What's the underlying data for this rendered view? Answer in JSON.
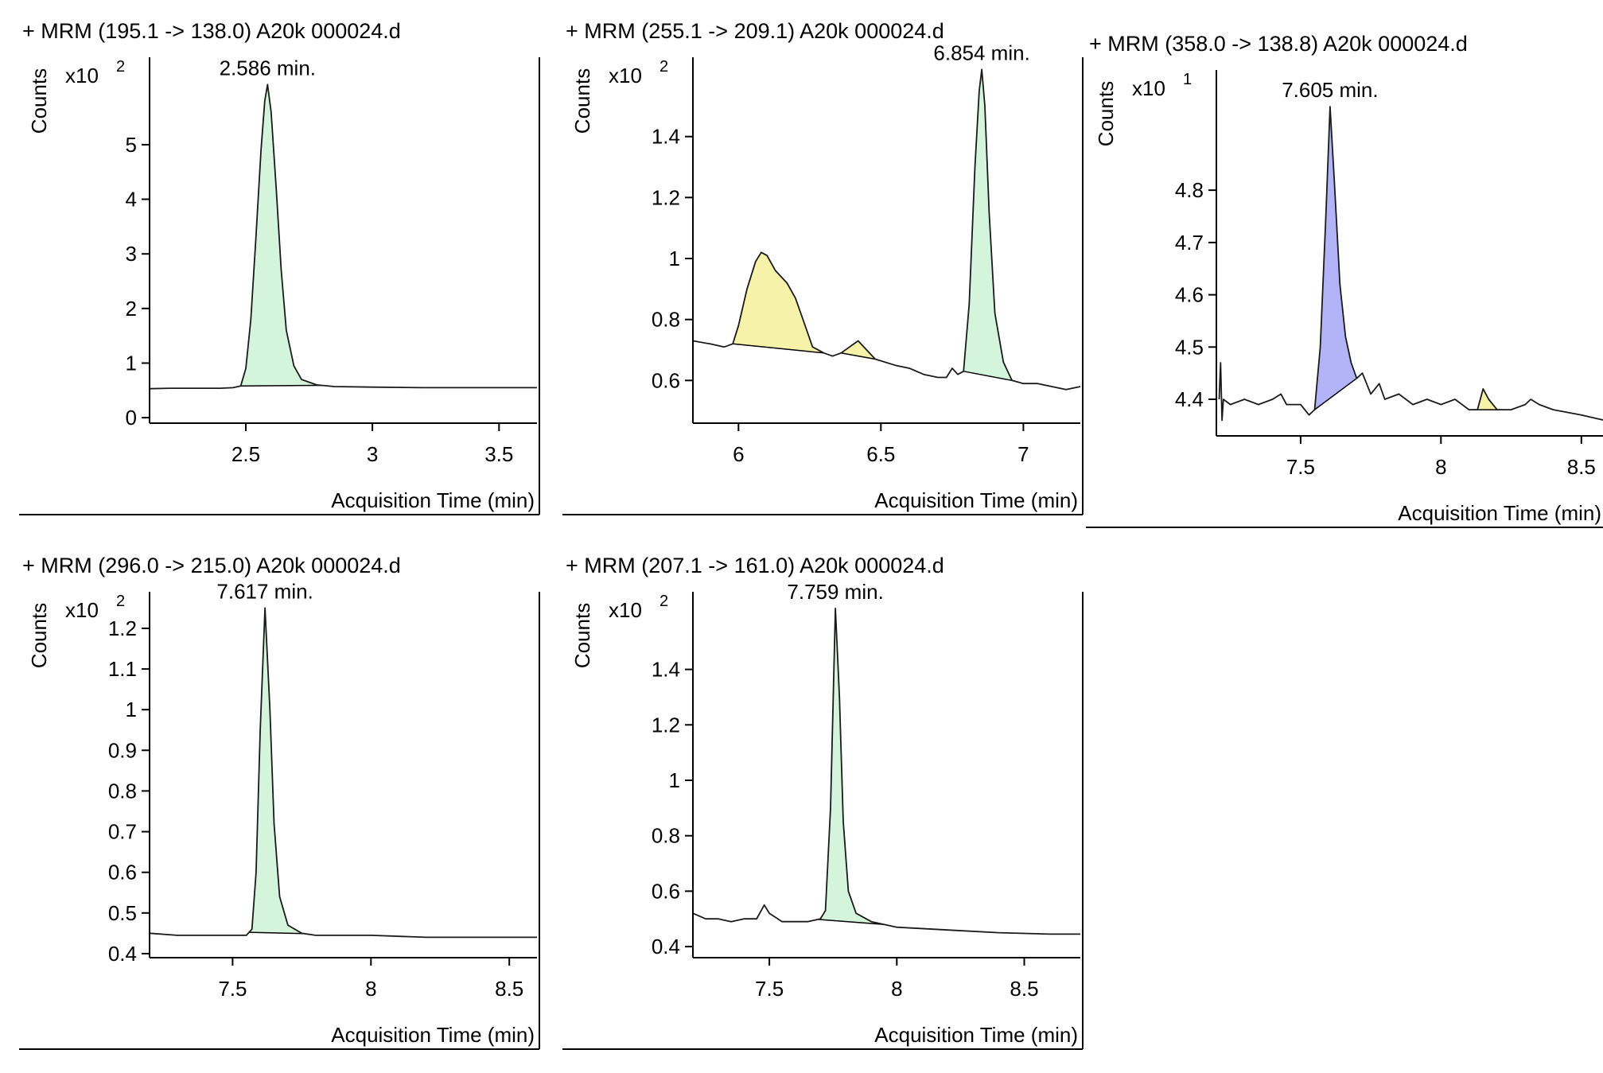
{
  "figure": {
    "background": "#ffffff"
  },
  "style": {
    "trace_color": "#1a1a1a",
    "fill_green": "#d4f5dc",
    "fill_yellow": "#f7f2a9",
    "fill_blue": "#b3b3f7"
  },
  "chart_data": [
    {
      "type": "line",
      "title": "+ MRM (195.1 -> 138.0) A20k 000024.d",
      "xlabel": "Acquisition Time (min)",
      "ylabel": "Counts",
      "y_multiplier": {
        "base": "x10",
        "exp": "2"
      },
      "xlim": [
        2.12,
        3.65
      ],
      "ylim": [
        -0.1,
        6.6
      ],
      "xticks": [
        2.5,
        3,
        3.5
      ],
      "xtick_labels": [
        "2.5",
        "3",
        "3.5"
      ],
      "yticks": [
        0,
        1,
        2,
        3,
        4,
        5
      ],
      "ytick_labels": [
        "0",
        "1",
        "2",
        "3",
        "4",
        "5"
      ],
      "trace": [
        [
          2.12,
          0.53
        ],
        [
          2.2,
          0.54
        ],
        [
          2.3,
          0.54
        ],
        [
          2.4,
          0.54
        ],
        [
          2.45,
          0.55
        ],
        [
          2.48,
          0.58
        ],
        [
          2.5,
          0.9
        ],
        [
          2.52,
          1.8
        ],
        [
          2.54,
          3.3
        ],
        [
          2.56,
          4.9
        ],
        [
          2.575,
          5.8
        ],
        [
          2.586,
          6.1
        ],
        [
          2.6,
          5.6
        ],
        [
          2.62,
          4.2
        ],
        [
          2.64,
          2.7
        ],
        [
          2.66,
          1.6
        ],
        [
          2.69,
          0.95
        ],
        [
          2.72,
          0.7
        ],
        [
          2.78,
          0.6
        ],
        [
          2.85,
          0.57
        ],
        [
          3.0,
          0.56
        ],
        [
          3.2,
          0.55
        ],
        [
          3.4,
          0.55
        ],
        [
          3.65,
          0.55
        ]
      ],
      "peaks": [
        {
          "range": [
            2.48,
            2.8
          ],
          "fill": "fill_green",
          "rt_label": "2.586 min."
        }
      ]
    },
    {
      "type": "line",
      "title": "+ MRM (255.1 -> 209.1) A20k 000024.d",
      "xlabel": "Acquisition Time (min)",
      "ylabel": "Counts",
      "y_multiplier": {
        "base": "x10",
        "exp": "2"
      },
      "xlim": [
        5.84,
        7.2
      ],
      "ylim": [
        0.46,
        1.66
      ],
      "xticks": [
        6,
        6.5,
        7
      ],
      "xtick_labels": [
        "6",
        "6.5",
        "7"
      ],
      "yticks": [
        0.6,
        0.8,
        1,
        1.2,
        1.4
      ],
      "ytick_labels": [
        "0.6",
        "0.8",
        "1",
        "1.2",
        "1.4"
      ],
      "trace": [
        [
          5.84,
          0.73
        ],
        [
          5.9,
          0.72
        ],
        [
          5.95,
          0.71
        ],
        [
          5.98,
          0.72
        ],
        [
          6.0,
          0.78
        ],
        [
          6.03,
          0.9
        ],
        [
          6.06,
          0.99
        ],
        [
          6.08,
          1.02
        ],
        [
          6.1,
          1.01
        ],
        [
          6.13,
          0.96
        ],
        [
          6.17,
          0.92
        ],
        [
          6.2,
          0.87
        ],
        [
          6.23,
          0.79
        ],
        [
          6.26,
          0.71
        ],
        [
          6.3,
          0.69
        ],
        [
          6.33,
          0.68
        ],
        [
          6.36,
          0.69
        ],
        [
          6.39,
          0.71
        ],
        [
          6.42,
          0.73
        ],
        [
          6.45,
          0.7
        ],
        [
          6.48,
          0.67
        ],
        [
          6.55,
          0.65
        ],
        [
          6.6,
          0.64
        ],
        [
          6.65,
          0.62
        ],
        [
          6.7,
          0.61
        ],
        [
          6.73,
          0.61
        ],
        [
          6.75,
          0.64
        ],
        [
          6.77,
          0.62
        ],
        [
          6.79,
          0.63
        ],
        [
          6.81,
          0.85
        ],
        [
          6.83,
          1.3
        ],
        [
          6.845,
          1.55
        ],
        [
          6.854,
          1.62
        ],
        [
          6.865,
          1.5
        ],
        [
          6.88,
          1.15
        ],
        [
          6.9,
          0.82
        ],
        [
          6.93,
          0.66
        ],
        [
          6.96,
          0.6
        ],
        [
          7.0,
          0.59
        ],
        [
          7.05,
          0.59
        ],
        [
          7.1,
          0.58
        ],
        [
          7.15,
          0.57
        ],
        [
          7.2,
          0.58
        ]
      ],
      "peaks": [
        {
          "range": [
            5.98,
            6.3
          ],
          "fill": "fill_yellow",
          "rt_label": ""
        },
        {
          "range": [
            6.36,
            6.48
          ],
          "fill": "fill_yellow",
          "rt_label": ""
        },
        {
          "range": [
            6.79,
            6.96
          ],
          "fill": "fill_green",
          "rt_label": "6.854 min."
        }
      ]
    },
    {
      "type": "line",
      "title": "+ MRM (358.0 -> 138.8) A20k 000024.d",
      "xlabel": "Acquisition Time (min)",
      "ylabel": "Counts",
      "y_multiplier": {
        "base": "x10",
        "exp": "1"
      },
      "xlim": [
        7.2,
        8.58
      ],
      "ylim": [
        4.33,
        5.03
      ],
      "xticks": [
        7.5,
        8,
        8.5
      ],
      "xtick_labels": [
        "7.5",
        "8",
        "8.5"
      ],
      "yticks": [
        4.4,
        4.5,
        4.6,
        4.7,
        4.8
      ],
      "ytick_labels": [
        "4.4",
        "4.5",
        "4.6",
        "4.7",
        "4.8"
      ],
      "trace": [
        [
          7.21,
          4.4
        ],
        [
          7.215,
          4.47
        ],
        [
          7.22,
          4.36
        ],
        [
          7.225,
          4.4
        ],
        [
          7.25,
          4.39
        ],
        [
          7.3,
          4.4
        ],
        [
          7.35,
          4.39
        ],
        [
          7.4,
          4.4
        ],
        [
          7.43,
          4.41
        ],
        [
          7.45,
          4.39
        ],
        [
          7.5,
          4.39
        ],
        [
          7.53,
          4.37
        ],
        [
          7.55,
          4.38
        ],
        [
          7.57,
          4.5
        ],
        [
          7.59,
          4.75
        ],
        [
          7.605,
          4.96
        ],
        [
          7.62,
          4.82
        ],
        [
          7.64,
          4.62
        ],
        [
          7.66,
          4.52
        ],
        [
          7.68,
          4.47
        ],
        [
          7.7,
          4.44
        ],
        [
          7.72,
          4.45
        ],
        [
          7.75,
          4.41
        ],
        [
          7.78,
          4.43
        ],
        [
          7.8,
          4.4
        ],
        [
          7.85,
          4.41
        ],
        [
          7.9,
          4.39
        ],
        [
          7.95,
          4.4
        ],
        [
          8.0,
          4.39
        ],
        [
          8.05,
          4.4
        ],
        [
          8.1,
          4.38
        ],
        [
          8.13,
          4.38
        ],
        [
          8.15,
          4.42
        ],
        [
          8.17,
          4.4
        ],
        [
          8.2,
          4.38
        ],
        [
          8.25,
          4.38
        ],
        [
          8.3,
          4.39
        ],
        [
          8.32,
          4.4
        ],
        [
          8.35,
          4.39
        ],
        [
          8.4,
          4.38
        ],
        [
          8.5,
          4.37
        ],
        [
          8.58,
          4.36
        ]
      ],
      "peaks": [
        {
          "range": [
            7.55,
            7.7
          ],
          "fill": "fill_blue",
          "rt_label": "7.605 min."
        },
        {
          "range": [
            8.11,
            8.22
          ],
          "fill": "fill_yellow",
          "rt_label": ""
        }
      ]
    },
    {
      "type": "line",
      "title": "+ MRM (296.0 -> 215.0) A20k 000024.d",
      "xlabel": "Acquisition Time (min)",
      "ylabel": "Counts",
      "y_multiplier": {
        "base": "x10",
        "exp": "2"
      },
      "xlim": [
        7.2,
        8.6
      ],
      "ylim": [
        0.39,
        1.29
      ],
      "xticks": [
        7.5,
        8,
        8.5
      ],
      "xtick_labels": [
        "7.5",
        "8",
        "8.5"
      ],
      "yticks": [
        0.4,
        0.5,
        0.6,
        0.7,
        0.8,
        0.9,
        1,
        1.1,
        1.2
      ],
      "ytick_labels": [
        "0.4",
        "0.5",
        "0.6",
        "0.7",
        "0.8",
        "0.9",
        "1",
        "1.1",
        "1.2"
      ],
      "trace": [
        [
          7.2,
          0.45
        ],
        [
          7.3,
          0.445
        ],
        [
          7.4,
          0.445
        ],
        [
          7.5,
          0.445
        ],
        [
          7.55,
          0.445
        ],
        [
          7.57,
          0.46
        ],
        [
          7.585,
          0.6
        ],
        [
          7.6,
          0.95
        ],
        [
          7.617,
          1.25
        ],
        [
          7.635,
          1.0
        ],
        [
          7.65,
          0.72
        ],
        [
          7.67,
          0.54
        ],
        [
          7.7,
          0.47
        ],
        [
          7.75,
          0.45
        ],
        [
          7.8,
          0.445
        ],
        [
          8.0,
          0.445
        ],
        [
          8.2,
          0.44
        ],
        [
          8.4,
          0.44
        ],
        [
          8.6,
          0.44
        ]
      ],
      "peaks": [
        {
          "range": [
            7.56,
            7.76
          ],
          "fill": "fill_green",
          "rt_label": "7.617 min."
        }
      ]
    },
    {
      "type": "line",
      "title": "+ MRM (207.1 -> 161.0) A20k 000024.d",
      "xlabel": "Acquisition Time (min)",
      "ylabel": "Counts",
      "y_multiplier": {
        "base": "x10",
        "exp": "2"
      },
      "xlim": [
        7.2,
        8.72
      ],
      "ylim": [
        0.36,
        1.68
      ],
      "xticks": [
        7.5,
        8,
        8.5
      ],
      "xtick_labels": [
        "7.5",
        "8",
        "8.5"
      ],
      "yticks": [
        0.4,
        0.6,
        0.8,
        1,
        1.2,
        1.4
      ],
      "ytick_labels": [
        "0.4",
        "0.6",
        "0.8",
        "1",
        "1.2",
        "1.4"
      ],
      "trace": [
        [
          7.2,
          0.52
        ],
        [
          7.25,
          0.5
        ],
        [
          7.3,
          0.5
        ],
        [
          7.35,
          0.49
        ],
        [
          7.4,
          0.5
        ],
        [
          7.45,
          0.5
        ],
        [
          7.48,
          0.55
        ],
        [
          7.5,
          0.52
        ],
        [
          7.55,
          0.49
        ],
        [
          7.6,
          0.49
        ],
        [
          7.65,
          0.49
        ],
        [
          7.7,
          0.5
        ],
        [
          7.72,
          0.53
        ],
        [
          7.74,
          0.9
        ],
        [
          7.759,
          1.62
        ],
        [
          7.775,
          1.3
        ],
        [
          7.79,
          0.85
        ],
        [
          7.81,
          0.6
        ],
        [
          7.84,
          0.52
        ],
        [
          7.9,
          0.49
        ],
        [
          7.95,
          0.48
        ],
        [
          8.0,
          0.47
        ],
        [
          8.2,
          0.46
        ],
        [
          8.4,
          0.45
        ],
        [
          8.6,
          0.445
        ],
        [
          8.72,
          0.445
        ]
      ],
      "peaks": [
        {
          "range": [
            7.69,
            7.95
          ],
          "fill": "fill_green",
          "rt_label": "7.759 min."
        }
      ]
    }
  ]
}
